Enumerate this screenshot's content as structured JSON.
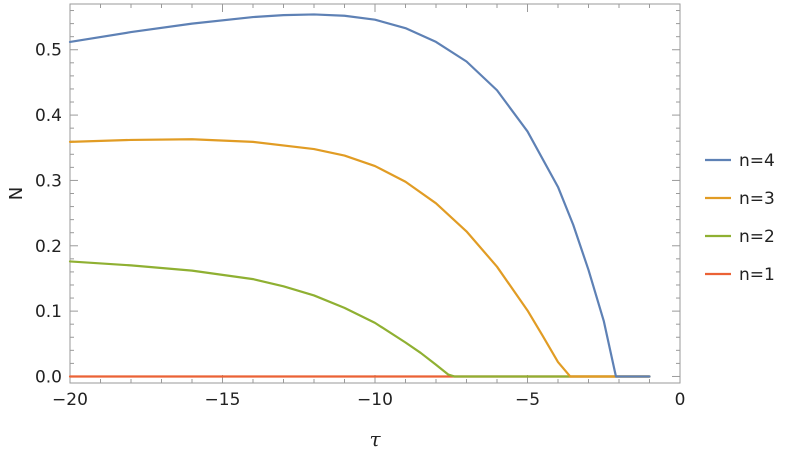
{
  "chart_data": {
    "type": "line",
    "xlabel": "τ",
    "ylabel": "N",
    "xlim": [
      -20,
      0
    ],
    "ylim": [
      -0.01,
      0.57
    ],
    "x_ticks": [
      -20,
      -15,
      -10,
      -5,
      0
    ],
    "y_ticks": [
      0.0,
      0.1,
      0.2,
      0.3,
      0.4,
      0.5
    ],
    "x_tick_labels": [
      "−20",
      "−15",
      "−10",
      "−5",
      "0"
    ],
    "y_tick_labels": [
      "0.0",
      "0.1",
      "0.2",
      "0.3",
      "0.4",
      "0.5"
    ],
    "grid": false,
    "frame": true,
    "legend_position": "right",
    "series": [
      {
        "name": "n=4",
        "color": "#5E81B5",
        "x": [
          -20,
          -18,
          -16,
          -14,
          -13,
          -12,
          -11,
          -10,
          -9,
          -8,
          -7,
          -6,
          -5,
          -4,
          -3.5,
          -3,
          -2.5,
          -2.1,
          -1
        ],
        "y": [
          0.512,
          0.527,
          0.54,
          0.55,
          0.553,
          0.554,
          0.552,
          0.546,
          0.533,
          0.512,
          0.482,
          0.438,
          0.375,
          0.29,
          0.232,
          0.163,
          0.085,
          0.0,
          0.0
        ]
      },
      {
        "name": "n=3",
        "color": "#E19C24",
        "x": [
          -20,
          -18,
          -16,
          -14,
          -12,
          -11,
          -10,
          -9,
          -8,
          -7,
          -6,
          -5,
          -4.5,
          -4,
          -3.6,
          -3.5,
          -1
        ],
        "y": [
          0.359,
          0.362,
          0.363,
          0.359,
          0.348,
          0.338,
          0.322,
          0.298,
          0.265,
          0.222,
          0.168,
          0.101,
          0.062,
          0.022,
          0.0,
          0.0,
          0.0
        ]
      },
      {
        "name": "n=2",
        "color": "#8FB032",
        "x": [
          -20,
          -18,
          -16,
          -14,
          -13,
          -12,
          -11,
          -10,
          -9,
          -8.5,
          -8,
          -7.6,
          -7.4,
          -1
        ],
        "y": [
          0.176,
          0.17,
          0.162,
          0.149,
          0.138,
          0.124,
          0.105,
          0.082,
          0.052,
          0.036,
          0.018,
          0.003,
          0.0,
          0.0
        ]
      },
      {
        "name": "n=1",
        "color": "#EB6235",
        "x": [
          -20,
          -1
        ],
        "y": [
          0.0,
          0.0
        ]
      }
    ]
  }
}
